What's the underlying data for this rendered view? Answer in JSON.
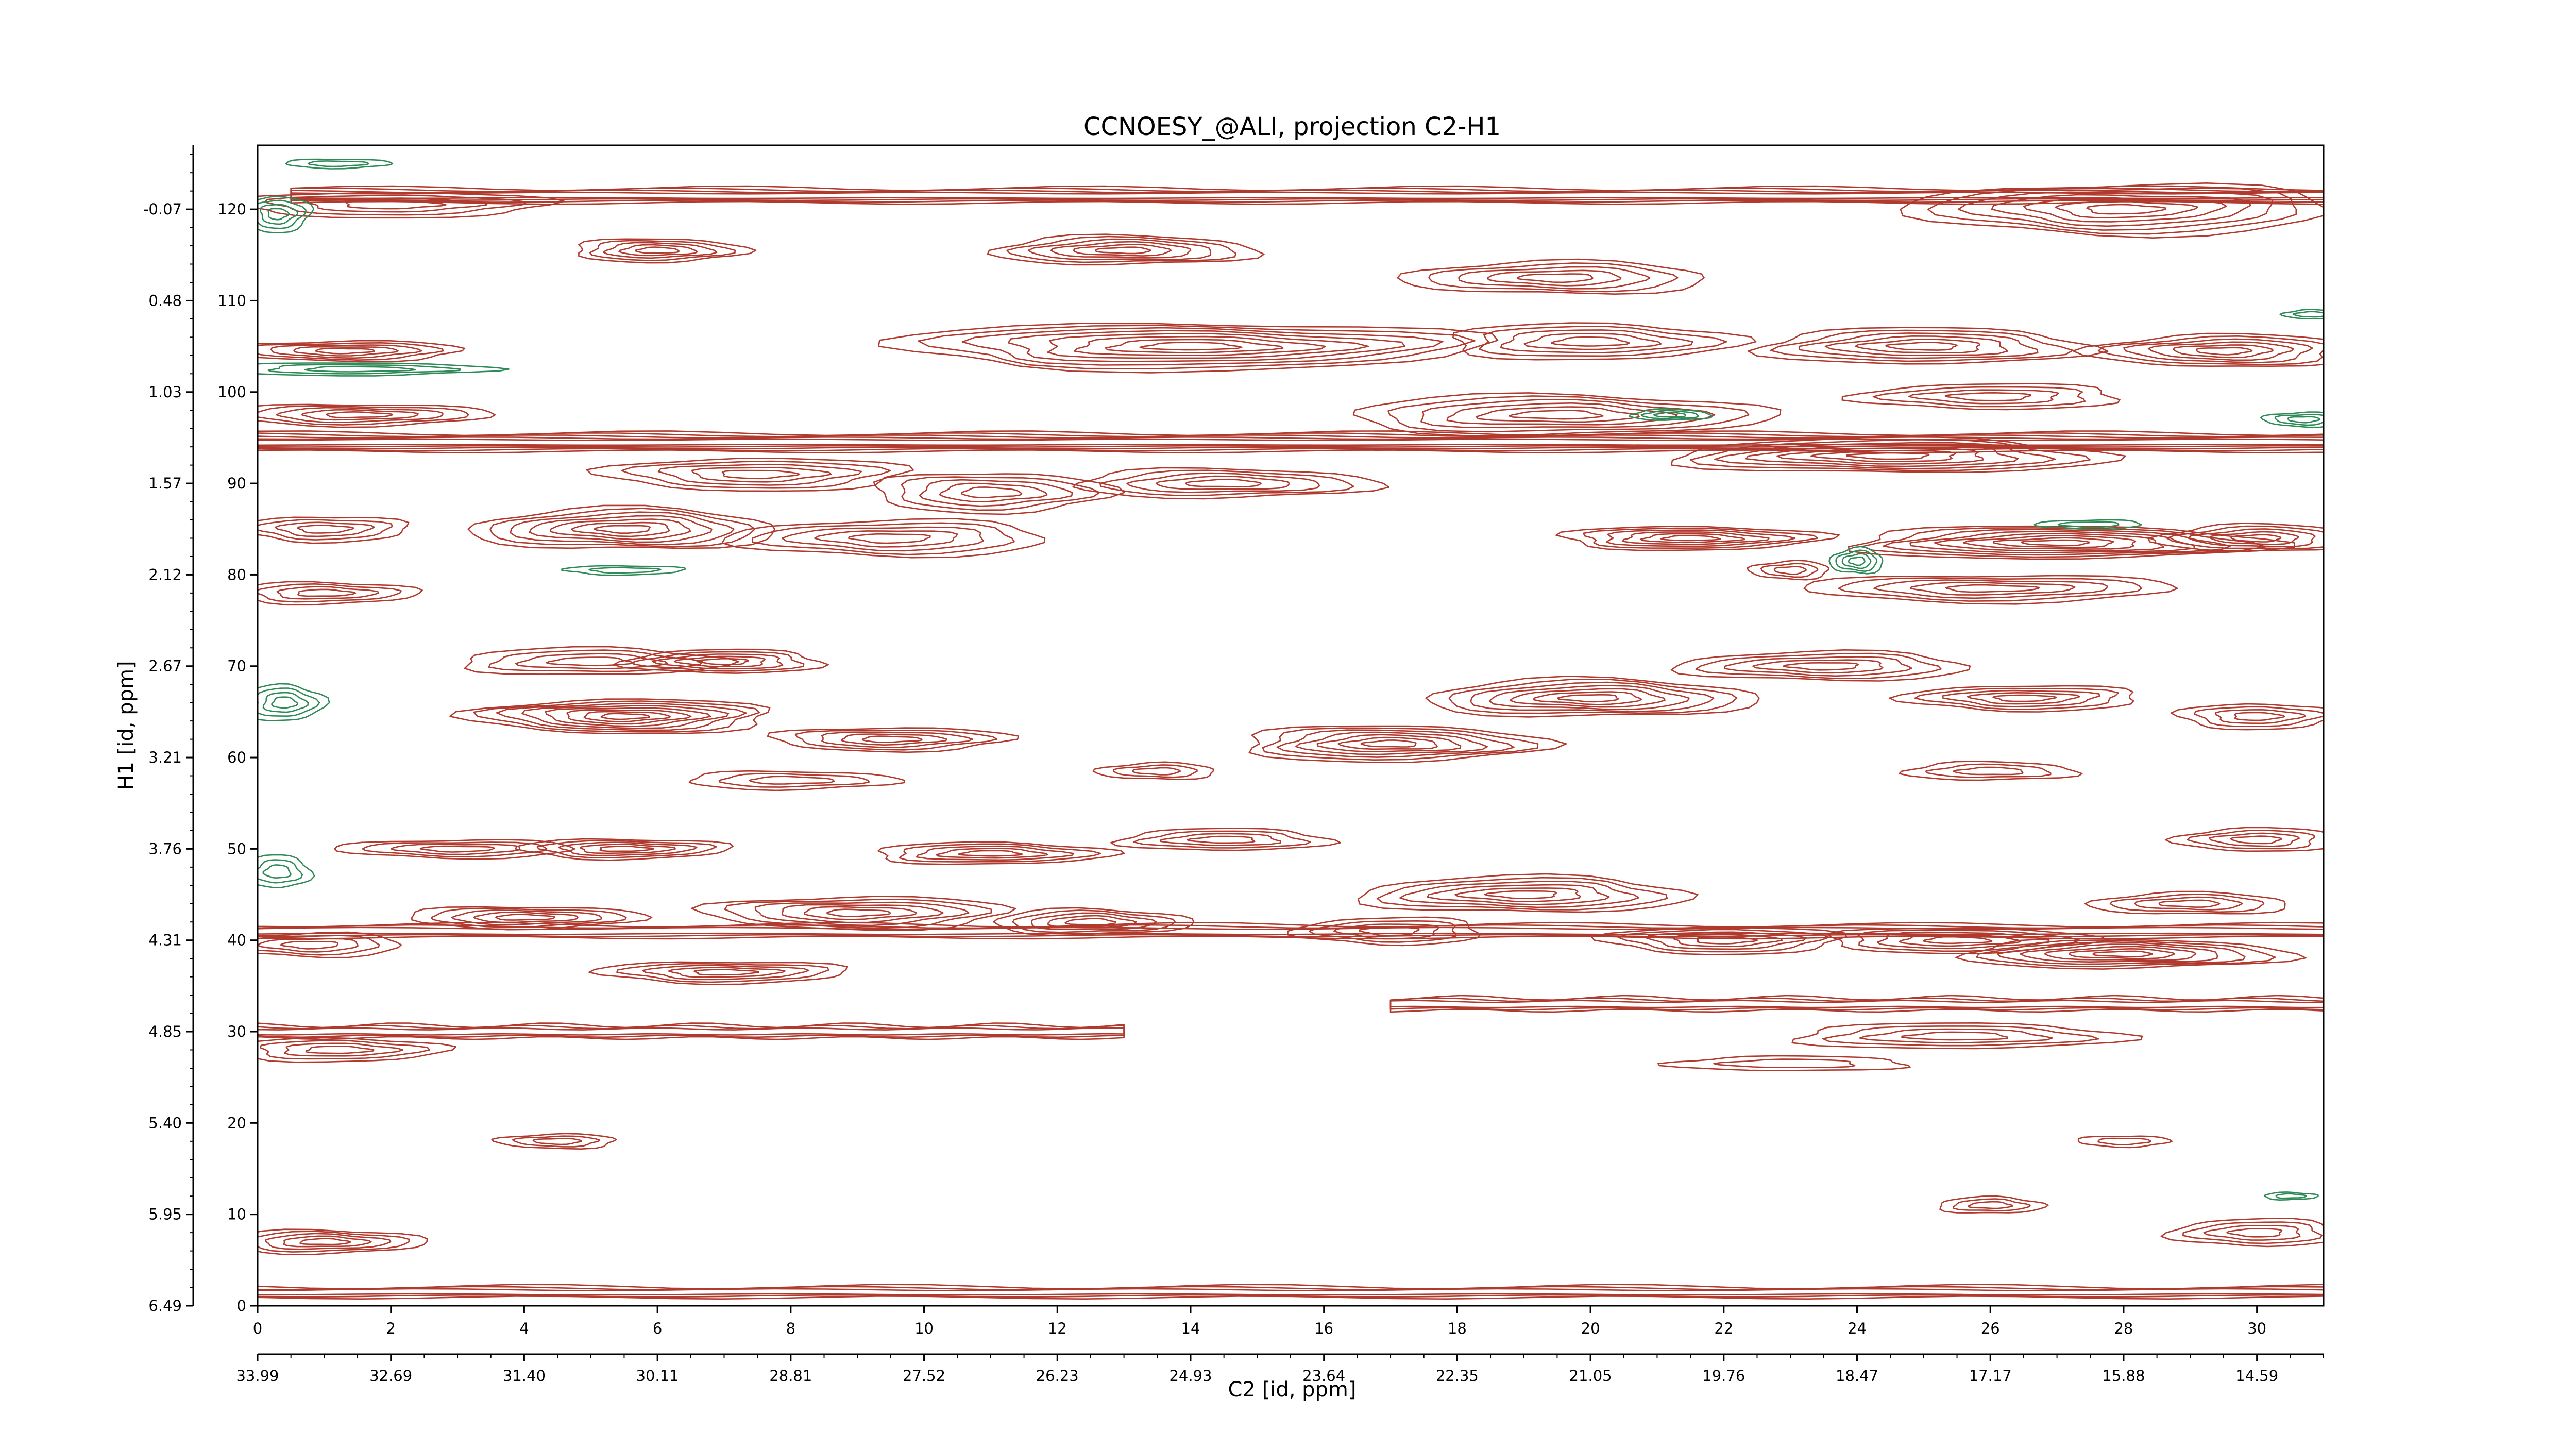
{
  "chart_data": {
    "type": "contour",
    "title": "CCNOESY_@ALI, projection C2-H1",
    "xlabel": "C2 [id, ppm]",
    "ylabel": "H1 [id, ppm]",
    "x_index_range": [
      0,
      31
    ],
    "y_index_range": [
      0,
      127
    ],
    "x_index_ticks": [
      "0",
      "2",
      "4",
      "6",
      "8",
      "10",
      "12",
      "14",
      "16",
      "18",
      "20",
      "22",
      "24",
      "26",
      "28",
      "30"
    ],
    "x_ppm_ticks": [
      "33.99",
      "32.69",
      "31.40",
      "30.11",
      "28.81",
      "27.52",
      "26.23",
      "24.93",
      "23.64",
      "22.35",
      "21.05",
      "19.76",
      "18.47",
      "17.17",
      "15.88",
      "14.59"
    ],
    "y_index_ticks": [
      "0",
      "10",
      "20",
      "30",
      "40",
      "50",
      "60",
      "70",
      "80",
      "90",
      "100",
      "110",
      "120"
    ],
    "y_ppm_ticks": [
      "6.49",
      "5.95",
      "5.40",
      "4.85",
      "4.31",
      "3.76",
      "3.21",
      "2.67",
      "2.12",
      "1.57",
      "1.03",
      "0.48",
      "-0.07"
    ],
    "colors": {
      "positive": "#b03a2e",
      "negative": "#2e8b57"
    },
    "positive_peaks": [
      {
        "x": 2.0,
        "y": 120.5,
        "sx": 2.4,
        "sy": 1.4,
        "levels": 4
      },
      {
        "x": 6.0,
        "y": 115.5,
        "sx": 1.3,
        "sy": 1.3,
        "levels": 5
      },
      {
        "x": 13.0,
        "y": 115.5,
        "sx": 2.0,
        "sy": 1.6,
        "levels": 6
      },
      {
        "x": 19.5,
        "y": 112.5,
        "sx": 2.3,
        "sy": 1.8,
        "levels": 5
      },
      {
        "x": 28.0,
        "y": 120.0,
        "sx": 3.2,
        "sy": 2.8,
        "levels": 7
      },
      {
        "x": 14.0,
        "y": 105.0,
        "sx": 4.5,
        "sy": 2.6,
        "levels": 8
      },
      {
        "x": 20.0,
        "y": 105.5,
        "sx": 2.2,
        "sy": 2.0,
        "levels": 5
      },
      {
        "x": 25.0,
        "y": 105.0,
        "sx": 2.5,
        "sy": 2.0,
        "levels": 6
      },
      {
        "x": 29.5,
        "y": 104.5,
        "sx": 2.0,
        "sy": 1.8,
        "levels": 6
      },
      {
        "x": 1.3,
        "y": 104.5,
        "sx": 1.8,
        "sy": 1.1,
        "levels": 5
      },
      {
        "x": 1.5,
        "y": 97.5,
        "sx": 2.0,
        "sy": 1.2,
        "levels": 5
      },
      {
        "x": 19.5,
        "y": 97.5,
        "sx": 3.2,
        "sy": 2.2,
        "levels": 6
      },
      {
        "x": 24.5,
        "y": 93.0,
        "sx": 3.3,
        "sy": 1.9,
        "levels": 7
      },
      {
        "x": 26.0,
        "y": 99.5,
        "sx": 2.0,
        "sy": 1.4,
        "levels": 4
      },
      {
        "x": 7.5,
        "y": 91.0,
        "sx": 2.3,
        "sy": 1.8,
        "levels": 5
      },
      {
        "x": 11.0,
        "y": 89.0,
        "sx": 1.8,
        "sy": 2.2,
        "levels": 5
      },
      {
        "x": 14.5,
        "y": 90.0,
        "sx": 2.3,
        "sy": 1.6,
        "levels": 5
      },
      {
        "x": 5.5,
        "y": 85.0,
        "sx": 2.3,
        "sy": 2.3,
        "levels": 7
      },
      {
        "x": 9.5,
        "y": 84.0,
        "sx": 2.4,
        "sy": 2.0,
        "levels": 5
      },
      {
        "x": 1.0,
        "y": 85.0,
        "sx": 1.3,
        "sy": 1.4,
        "levels": 4
      },
      {
        "x": 21.5,
        "y": 84.0,
        "sx": 2.0,
        "sy": 1.3,
        "levels": 6
      },
      {
        "x": 27.0,
        "y": 83.5,
        "sx": 3.2,
        "sy": 1.8,
        "levels": 8
      },
      {
        "x": 30.0,
        "y": 84.0,
        "sx": 1.5,
        "sy": 1.5,
        "levels": 5
      },
      {
        "x": 23.0,
        "y": 80.5,
        "sx": 0.6,
        "sy": 1.0,
        "levels": 3
      },
      {
        "x": 26.0,
        "y": 78.5,
        "sx": 2.8,
        "sy": 1.5,
        "levels": 5
      },
      {
        "x": 1.0,
        "y": 78.0,
        "sx": 1.4,
        "sy": 1.2,
        "levels": 4
      },
      {
        "x": 5.0,
        "y": 70.5,
        "sx": 2.0,
        "sy": 1.5,
        "levels": 4
      },
      {
        "x": 7.0,
        "y": 70.5,
        "sx": 1.5,
        "sy": 1.3,
        "levels": 5
      },
      {
        "x": 5.5,
        "y": 64.5,
        "sx": 2.3,
        "sy": 1.9,
        "levels": 8
      },
      {
        "x": 9.5,
        "y": 62.0,
        "sx": 1.8,
        "sy": 1.3,
        "levels": 5
      },
      {
        "x": 8.0,
        "y": 57.5,
        "sx": 1.6,
        "sy": 1.0,
        "levels": 3
      },
      {
        "x": 20.0,
        "y": 66.5,
        "sx": 2.5,
        "sy": 2.1,
        "levels": 7
      },
      {
        "x": 23.5,
        "y": 70.0,
        "sx": 2.2,
        "sy": 1.6,
        "levels": 5
      },
      {
        "x": 26.5,
        "y": 66.5,
        "sx": 1.8,
        "sy": 1.4,
        "levels": 5
      },
      {
        "x": 30.0,
        "y": 64.5,
        "sx": 1.2,
        "sy": 1.4,
        "levels": 4
      },
      {
        "x": 17.0,
        "y": 61.5,
        "sx": 2.3,
        "sy": 2.0,
        "levels": 7
      },
      {
        "x": 26.0,
        "y": 58.5,
        "sx": 1.3,
        "sy": 1.0,
        "levels": 3
      },
      {
        "x": 13.5,
        "y": 58.5,
        "sx": 0.9,
        "sy": 0.9,
        "levels": 3
      },
      {
        "x": 3.0,
        "y": 50.0,
        "sx": 1.8,
        "sy": 1.0,
        "levels": 4
      },
      {
        "x": 5.5,
        "y": 50.0,
        "sx": 1.6,
        "sy": 1.1,
        "levels": 5
      },
      {
        "x": 11.0,
        "y": 49.5,
        "sx": 1.8,
        "sy": 1.2,
        "levels": 5
      },
      {
        "x": 14.5,
        "y": 51.0,
        "sx": 1.6,
        "sy": 1.2,
        "levels": 4
      },
      {
        "x": 30.0,
        "y": 51.0,
        "sx": 1.2,
        "sy": 1.3,
        "levels": 4
      },
      {
        "x": 9.0,
        "y": 43.0,
        "sx": 2.3,
        "sy": 1.8,
        "levels": 6
      },
      {
        "x": 4.0,
        "y": 42.5,
        "sx": 1.8,
        "sy": 1.2,
        "levels": 5
      },
      {
        "x": 12.5,
        "y": 42.0,
        "sx": 1.5,
        "sy": 1.4,
        "levels": 5
      },
      {
        "x": 19.0,
        "y": 45.0,
        "sx": 2.5,
        "sy": 2.0,
        "levels": 6
      },
      {
        "x": 17.0,
        "y": 41.0,
        "sx": 1.4,
        "sy": 1.5,
        "levels": 4
      },
      {
        "x": 22.0,
        "y": 40.0,
        "sx": 1.8,
        "sy": 1.5,
        "levels": 5
      },
      {
        "x": 25.5,
        "y": 40.0,
        "sx": 2.0,
        "sy": 1.4,
        "levels": 5
      },
      {
        "x": 28.0,
        "y": 38.5,
        "sx": 2.5,
        "sy": 1.6,
        "levels": 7
      },
      {
        "x": 29.0,
        "y": 44.0,
        "sx": 1.5,
        "sy": 1.2,
        "levels": 4
      },
      {
        "x": 0.8,
        "y": 39.5,
        "sx": 1.4,
        "sy": 1.3,
        "levels": 4
      },
      {
        "x": 7.0,
        "y": 36.5,
        "sx": 1.9,
        "sy": 1.2,
        "levels": 5
      },
      {
        "x": 1.2,
        "y": 28.0,
        "sx": 1.6,
        "sy": 1.3,
        "levels": 4
      },
      {
        "x": 25.5,
        "y": 29.5,
        "sx": 2.5,
        "sy": 1.4,
        "levels": 4
      },
      {
        "x": 23.0,
        "y": 26.5,
        "sx": 1.8,
        "sy": 0.8,
        "levels": 2
      },
      {
        "x": 4.5,
        "y": 18.0,
        "sx": 0.9,
        "sy": 0.8,
        "levels": 3
      },
      {
        "x": 28.0,
        "y": 18.0,
        "sx": 0.7,
        "sy": 0.6,
        "levels": 2
      },
      {
        "x": 1.0,
        "y": 7.0,
        "sx": 1.5,
        "sy": 1.3,
        "levels": 5
      },
      {
        "x": 26.0,
        "y": 11.0,
        "sx": 0.8,
        "sy": 0.9,
        "levels": 3
      },
      {
        "x": 30.0,
        "y": 8.0,
        "sx": 1.3,
        "sy": 1.5,
        "levels": 4
      }
    ],
    "positive_ridges": [
      {
        "x1": 0.5,
        "x2": 31.0,
        "y": 121.5,
        "w": 0.8,
        "levels": 4
      },
      {
        "x1": 0.0,
        "x2": 31.0,
        "y": 94.5,
        "w": 1.0,
        "levels": 5
      },
      {
        "x1": 0.0,
        "x2": 13.0,
        "y": 30.0,
        "w": 0.7,
        "levels": 3
      },
      {
        "x1": 0.0,
        "x2": 31.0,
        "y": 1.5,
        "w": 0.6,
        "levels": 3
      },
      {
        "x1": 0.0,
        "x2": 31.0,
        "y": 41.0,
        "w": 0.7,
        "levels": 3
      },
      {
        "x1": 17.0,
        "x2": 31.0,
        "y": 33.0,
        "w": 0.7,
        "levels": 3
      }
    ],
    "negative_peaks": [
      {
        "x": 0.3,
        "y": 119.5,
        "sx": 0.5,
        "sy": 2.0,
        "levels": 4
      },
      {
        "x": 1.5,
        "y": 102.5,
        "sx": 2.0,
        "sy": 0.7,
        "levels": 3
      },
      {
        "x": 21.2,
        "y": 97.5,
        "sx": 0.6,
        "sy": 0.6,
        "levels": 3
      },
      {
        "x": 24.0,
        "y": 81.5,
        "sx": 0.4,
        "sy": 1.4,
        "levels": 4
      },
      {
        "x": 27.5,
        "y": 85.5,
        "sx": 0.8,
        "sy": 0.5,
        "levels": 2
      },
      {
        "x": 5.5,
        "y": 80.5,
        "sx": 0.9,
        "sy": 0.5,
        "levels": 2
      },
      {
        "x": 0.4,
        "y": 66.0,
        "sx": 0.6,
        "sy": 2.0,
        "levels": 4
      },
      {
        "x": 0.3,
        "y": 47.5,
        "sx": 0.5,
        "sy": 1.8,
        "levels": 3
      },
      {
        "x": 30.8,
        "y": 108.5,
        "sx": 0.4,
        "sy": 0.5,
        "levels": 2
      },
      {
        "x": 30.7,
        "y": 97.0,
        "sx": 0.6,
        "sy": 0.8,
        "levels": 3
      },
      {
        "x": 1.2,
        "y": 125.0,
        "sx": 0.8,
        "sy": 0.5,
        "levels": 2
      },
      {
        "x": 30.5,
        "y": 12.0,
        "sx": 0.4,
        "sy": 0.4,
        "levels": 2
      }
    ]
  }
}
